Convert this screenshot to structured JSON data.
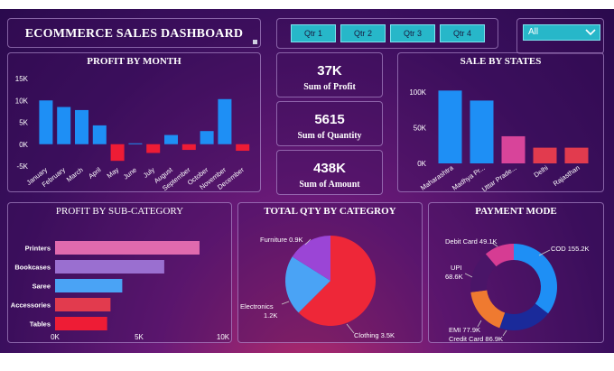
{
  "header": {
    "title": "ECOMMERCE SALES DASHBOARD"
  },
  "quarters": [
    "Qtr 1",
    "Qtr 2",
    "Qtr 3",
    "Qtr 4"
  ],
  "filter": {
    "selected": "All"
  },
  "kpis": [
    {
      "value": "37K",
      "label": "Sum of Profit"
    },
    {
      "value": "5615",
      "label": "Sum of Quantity"
    },
    {
      "value": "438K",
      "label": "Sum of Amount"
    }
  ],
  "colors": {
    "blue": "#1e8ff5",
    "red": "#ee1c35",
    "pink": "#e0448f",
    "red2": "#e23b4e",
    "purple": "#9b45d6",
    "lightblue": "#4aa3f5",
    "orange": "#ef7a30",
    "darkpurple": "#4a1568",
    "navy": "#1a2a9a"
  },
  "chart_data": [
    {
      "id": "profit-by-month",
      "type": "bar",
      "title": "PROFIT BY MONTH",
      "categories": [
        "January",
        "February",
        "March",
        "April",
        "May",
        "June",
        "July",
        "August",
        "September",
        "October",
        "November",
        "December"
      ],
      "values": [
        10000,
        8500,
        7800,
        4300,
        -3800,
        200,
        -2000,
        2100,
        -1300,
        3000,
        10300,
        -1500
      ],
      "ylim": [
        -5000,
        15000
      ],
      "yticks": [
        -5000,
        0,
        5000,
        10000,
        15000
      ],
      "ytick_labels": [
        "-5K",
        "0K",
        "5K",
        "10K",
        "15K"
      ]
    },
    {
      "id": "sale-by-states",
      "type": "bar",
      "title": "SALE BY STATES",
      "categories": [
        "Maharashtra",
        "Madhya Pr...",
        "Uttar Prade...",
        "Delhi",
        "Rajasthan"
      ],
      "values": [
        102000,
        88000,
        38000,
        22000,
        22000
      ],
      "bar_colors": [
        "#1e8ff5",
        "#1e8ff5",
        "#d8449a",
        "#e23b4e",
        "#e23b4e"
      ],
      "ylim": [
        0,
        110000
      ],
      "yticks": [
        0,
        50000,
        100000
      ],
      "ytick_labels": [
        "0K",
        "50K",
        "100K"
      ]
    },
    {
      "id": "profit-by-subcategory",
      "type": "bar",
      "orientation": "horizontal",
      "title": "PROFIT BY SUB-CATEGORY",
      "categories": [
        "Printers",
        "Bookcases",
        "Saree",
        "Accessories",
        "Tables"
      ],
      "values": [
        8600,
        6500,
        4000,
        3300,
        3100
      ],
      "bar_colors": [
        "#e06aae",
        "#9a6fd0",
        "#4aa3f5",
        "#e23b4e",
        "#ee1c35"
      ],
      "xlim": [
        0,
        10000
      ],
      "xticks": [
        0,
        5000,
        10000
      ],
      "xtick_labels": [
        "0K",
        "5K",
        "10K"
      ]
    },
    {
      "id": "total-qty-by-category",
      "type": "pie",
      "title": "TOTAL QTY BY CATEGROY",
      "slices": [
        {
          "name": "Clothing",
          "value": 3500,
          "label": "Clothing 3.5K",
          "color": "#ee2738"
        },
        {
          "name": "Electronics",
          "value": 1200,
          "label": "Electronics 1.2K",
          "color": "#4aa3f5"
        },
        {
          "name": "Furniture",
          "value": 900,
          "label": "Furniture 0.9K",
          "color": "#9b45d6"
        }
      ]
    },
    {
      "id": "payment-mode",
      "type": "pie",
      "donut": true,
      "title": "PAYMENT MODE",
      "slices": [
        {
          "name": "COD",
          "value": 155.2,
          "label": "COD 155.2K",
          "color": "#1e8ff5"
        },
        {
          "name": "Credit Card",
          "value": 86.9,
          "label": "Credit Card 86.9K",
          "color": "#1a2a9a"
        },
        {
          "name": "EMI",
          "value": 77.9,
          "label": "EMI 77.9K",
          "color": "#ef7a30"
        },
        {
          "name": "UPI",
          "value": 68.6,
          "label": "UPI 68.6K",
          "color": "#4a1568"
        },
        {
          "name": "Debit Card",
          "value": 49.1,
          "label": "Debit Card 49.1K",
          "color": "#d63c93"
        }
      ]
    }
  ]
}
